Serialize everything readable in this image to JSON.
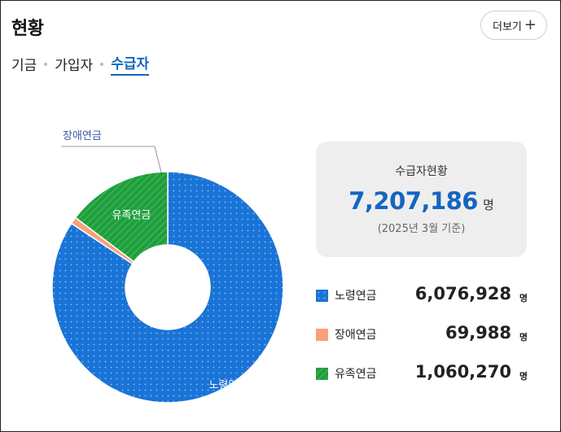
{
  "header": {
    "title": "현황",
    "more_label": "더보기",
    "more_icon": "plus-icon"
  },
  "tabs": [
    {
      "label": "기금",
      "active": false
    },
    {
      "label": "가입자",
      "active": false
    },
    {
      "label": "수급자",
      "active": true
    }
  ],
  "summary": {
    "title": "수급자현황",
    "value": "7,207,186",
    "unit": "명",
    "note": "(2025년 3월 기준)"
  },
  "legend": [
    {
      "label": "노령연금",
      "value": "6,076,928",
      "unit": "명",
      "color": "#1a73d6"
    },
    {
      "label": "장애연금",
      "value": "69,988",
      "unit": "명",
      "color": "#f7a07a"
    },
    {
      "label": "유족연금",
      "value": "1,060,270",
      "unit": "명",
      "color": "#1e9f3c"
    }
  ],
  "chart_data": {
    "type": "pie",
    "style": "donut",
    "categories": [
      "노령연금",
      "장애연금",
      "유족연금"
    ],
    "values": [
      6076928,
      69988,
      1060270
    ],
    "colors": [
      "#1a73d6",
      "#f7a07a",
      "#1e9f3c"
    ],
    "slice_labels": [
      "노령연금",
      "장애연금",
      "유족연금"
    ],
    "external_label": "장애연금"
  }
}
